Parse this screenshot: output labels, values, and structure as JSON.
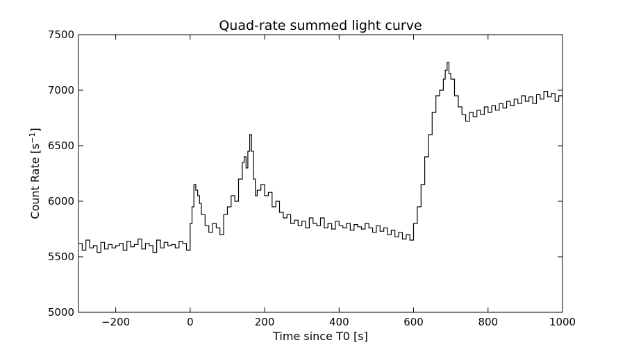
{
  "chart_data": {
    "type": "line",
    "title": "Quad-rate summed light curve",
    "xlabel": "Time since T0 [s]",
    "ylabel": "Count Rate [s",
    "ylabel_sup": "−1",
    "ylabel_end": "]",
    "xlim": [
      -300,
      1000
    ],
    "ylim": [
      5000,
      7500
    ],
    "xticks": [
      -200,
      0,
      200,
      400,
      600,
      800,
      1000
    ],
    "xtick_labels": [
      "−200",
      "0",
      "200",
      "400",
      "600",
      "800",
      "1000"
    ],
    "yticks": [
      5000,
      5500,
      6000,
      6500,
      7000,
      7500
    ],
    "ytick_labels": [
      "5000",
      "5500",
      "6000",
      "6500",
      "7000",
      "7500"
    ],
    "grid": false,
    "line_color": "#000000",
    "series": [
      {
        "style": "steps",
        "x": [
          -300,
          -290,
          -280,
          -270,
          -260,
          -250,
          -240,
          -230,
          -220,
          -210,
          -200,
          -190,
          -180,
          -170,
          -160,
          -150,
          -140,
          -130,
          -120,
          -110,
          -100,
          -90,
          -80,
          -70,
          -60,
          -50,
          -40,
          -30,
          -20,
          -10,
          0,
          5,
          10,
          15,
          20,
          25,
          30,
          40,
          50,
          60,
          70,
          80,
          90,
          100,
          110,
          120,
          130,
          140,
          145,
          150,
          155,
          160,
          165,
          170,
          175,
          180,
          190,
          200,
          210,
          220,
          230,
          240,
          250,
          260,
          270,
          280,
          290,
          300,
          310,
          320,
          330,
          340,
          350,
          360,
          370,
          380,
          390,
          400,
          410,
          420,
          430,
          440,
          450,
          460,
          470,
          480,
          490,
          500,
          510,
          520,
          530,
          540,
          550,
          560,
          570,
          580,
          590,
          600,
          610,
          620,
          630,
          640,
          650,
          660,
          670,
          680,
          685,
          690,
          695,
          700,
          710,
          720,
          730,
          740,
          750,
          760,
          770,
          780,
          790,
          800,
          810,
          820,
          830,
          840,
          850,
          860,
          870,
          880,
          890,
          900,
          910,
          920,
          930,
          940,
          950,
          960,
          970,
          980,
          990,
          1000
        ],
        "y": [
          5620,
          5560,
          5650,
          5580,
          5600,
          5540,
          5630,
          5570,
          5610,
          5580,
          5600,
          5620,
          5560,
          5640,
          5590,
          5610,
          5660,
          5570,
          5620,
          5600,
          5540,
          5650,
          5580,
          5630,
          5600,
          5610,
          5580,
          5640,
          5620,
          5560,
          5800,
          5950,
          6150,
          6100,
          6050,
          5980,
          5880,
          5780,
          5720,
          5800,
          5760,
          5700,
          5880,
          5950,
          6050,
          6000,
          6200,
          6350,
          6400,
          6300,
          6450,
          6600,
          6450,
          6200,
          6050,
          6100,
          6150,
          6050,
          6080,
          5950,
          6000,
          5900,
          5850,
          5880,
          5800,
          5830,
          5780,
          5820,
          5760,
          5850,
          5800,
          5780,
          5850,
          5760,
          5800,
          5750,
          5820,
          5780,
          5760,
          5800,
          5740,
          5790,
          5770,
          5750,
          5800,
          5760,
          5720,
          5780,
          5730,
          5760,
          5700,
          5740,
          5680,
          5720,
          5660,
          5700,
          5650,
          5800,
          5950,
          6150,
          6400,
          6600,
          6800,
          6950,
          7000,
          7100,
          7180,
          7250,
          7150,
          7100,
          6950,
          6850,
          6780,
          6720,
          6800,
          6760,
          6820,
          6780,
          6850,
          6800,
          6860,
          6820,
          6880,
          6840,
          6900,
          6860,
          6920,
          6880,
          6950,
          6900,
          6940,
          6880,
          6960,
          6920,
          6990,
          6940,
          6970,
          6900,
          6950,
          6930
        ]
      }
    ]
  }
}
